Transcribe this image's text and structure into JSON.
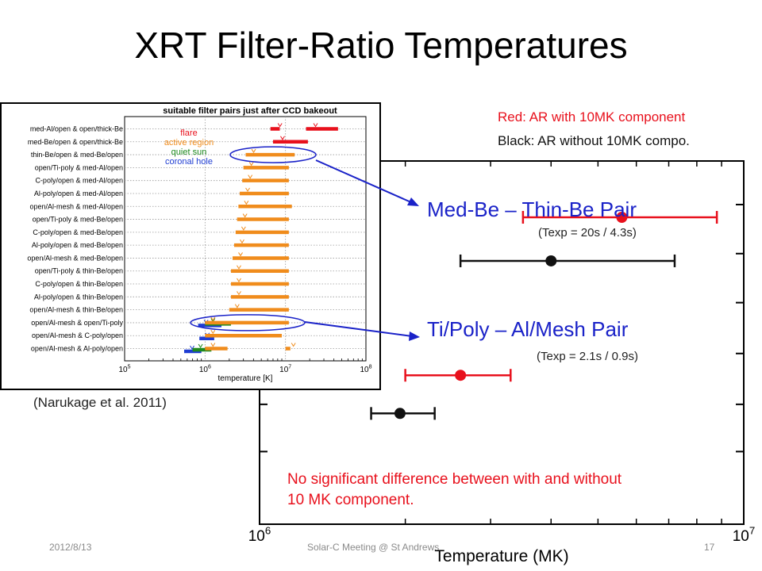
{
  "slide": {
    "title": "XRT Filter-Ratio Temperatures",
    "legend_red": "Red: AR with 10MK component",
    "legend_black": "Black: AR without 10MK compo.",
    "pair1_label": "Med-Be – Thin-Be Pair",
    "pair1_texp": "(Texp = 20s / 4.3s)",
    "pair2_label": "Ti/Poly – Al/Mesh Pair",
    "pair2_texp": "(Texp = 2.1s / 0.9s)",
    "reference": "(Narukage et al. 2011)",
    "note_line1": "No significant difference between with and without",
    "note_line2": "10 MK component.",
    "footer_date": "2012/8/13",
    "footer_center": "Solar-C Meeting @ St Andrews",
    "footer_page": "17"
  },
  "colors": {
    "red": "#e8101c",
    "black": "#111111",
    "blue": "#1a22c8",
    "orange": "#f08c1c",
    "green": "#1e8a1e",
    "coronal_blue": "#1e3cd2"
  },
  "chart_data": [
    {
      "type": "scatter",
      "xlabel": "Temperature (MK)",
      "xscale": "log",
      "xlim": [
        1000000,
        10000000
      ],
      "x_tick_labels": [
        {
          "base": "10",
          "exp": "6",
          "value": 1000000
        },
        {
          "base": "10",
          "exp": "7",
          "value": 10000000
        }
      ],
      "y_tick_rows": [
        0.88,
        0.745,
        0.61,
        0.47,
        0.33,
        0.2
      ],
      "series": [
        {
          "color": "red",
          "row": 0.845,
          "center": 5600000,
          "low": 3500000,
          "high": 8800000
        },
        {
          "color": "black",
          "row": 0.725,
          "center": 4000000,
          "low": 2600000,
          "high": 7200000
        },
        {
          "color": "red",
          "row": 0.41,
          "center": 2600000,
          "low": 2000000,
          "high": 3300000
        },
        {
          "color": "black",
          "row": 0.305,
          "center": 1950000,
          "low": 1700000,
          "high": 2300000
        }
      ]
    },
    {
      "type": "bar",
      "title": "suitable filter pairs just after CCD bakeout",
      "xlabel": "temperature [K]",
      "xscale": "log",
      "xlim": [
        100000,
        100000000
      ],
      "x_tick_labels": [
        {
          "base": "10",
          "exp": "5",
          "value": 100000
        },
        {
          "base": "10",
          "exp": "6",
          "value": 1000000
        },
        {
          "base": "10",
          "exp": "7",
          "value": 10000000
        },
        {
          "base": "10",
          "exp": "8",
          "value": 100000000
        }
      ],
      "legend": [
        {
          "label": "flare",
          "color": "red"
        },
        {
          "label": "active region",
          "color": "orange"
        },
        {
          "label": "quiet sun",
          "color": "green"
        },
        {
          "label": "coronal hole",
          "color": "coronal_blue"
        }
      ],
      "categories": [
        "med-Al/open & open/thick-Be",
        "med-Be/open & open/thick-Be",
        "thin-Be/open & med-Be/open",
        "open/Ti-poly & med-Al/open",
        "C-poly/open & med-Al/open",
        "Al-poly/open & med-Al/open",
        "open/Al-mesh & med-Al/open",
        "open/Ti-poly & med-Be/open",
        "C-poly/open & med-Be/open",
        "Al-poly/open & med-Be/open",
        "open/Al-mesh & med-Be/open",
        "open/Ti-poly & thin-Be/open",
        "C-poly/open & thin-Be/open",
        "Al-poly/open & thin-Be/open",
        "open/Al-mesh & thin-Be/open",
        "open/Al-mesh & open/Ti-poly",
        "open/Al-mesh & C-poly/open",
        "open/Al-mesh & Al-poly/open"
      ],
      "ranges": [
        [
          {
            "color": "red",
            "min": 6500000,
            "max": 8500000
          },
          {
            "color": "red",
            "min": 18000000,
            "max": 45000000
          }
        ],
        [
          {
            "color": "red",
            "min": 7000000,
            "max": 19000000
          }
        ],
        [
          {
            "color": "orange",
            "min": 3200000,
            "max": 13000000
          }
        ],
        [
          {
            "color": "orange",
            "min": 3000000,
            "max": 11000000
          }
        ],
        [
          {
            "color": "orange",
            "min": 2900000,
            "max": 11000000
          }
        ],
        [
          {
            "color": "orange",
            "min": 2700000,
            "max": 11000000
          }
        ],
        [
          {
            "color": "orange",
            "min": 2600000,
            "max": 12000000
          }
        ],
        [
          {
            "color": "orange",
            "min": 2500000,
            "max": 11000000
          }
        ],
        [
          {
            "color": "orange",
            "min": 2400000,
            "max": 11000000
          }
        ],
        [
          {
            "color": "orange",
            "min": 2300000,
            "max": 11000000
          }
        ],
        [
          {
            "color": "orange",
            "min": 2200000,
            "max": 11000000
          }
        ],
        [
          {
            "color": "orange",
            "min": 2100000,
            "max": 11000000
          }
        ],
        [
          {
            "color": "orange",
            "min": 2100000,
            "max": 11000000
          }
        ],
        [
          {
            "color": "orange",
            "min": 2100000,
            "max": 11000000
          }
        ],
        [
          {
            "color": "orange",
            "min": 2000000,
            "max": 11000000
          }
        ],
        [
          {
            "color": "coronal_blue",
            "min": 820000,
            "max": 1600000
          },
          {
            "color": "green",
            "min": 1000000,
            "max": 2100000
          },
          {
            "color": "orange",
            "min": 1000000,
            "max": 11000000
          }
        ],
        [
          {
            "color": "coronal_blue",
            "min": 850000,
            "max": 1300000
          },
          {
            "color": "orange",
            "min": 1000000,
            "max": 9000000
          }
        ],
        [
          {
            "color": "coronal_blue",
            "min": 550000,
            "max": 900000
          },
          {
            "color": "green",
            "min": 700000,
            "max": 1200000
          },
          {
            "color": "orange",
            "min": 1000000,
            "max": 1900000
          },
          {
            "color": "orange",
            "min": 10000000,
            "max": 11500000
          }
        ]
      ]
    }
  ]
}
